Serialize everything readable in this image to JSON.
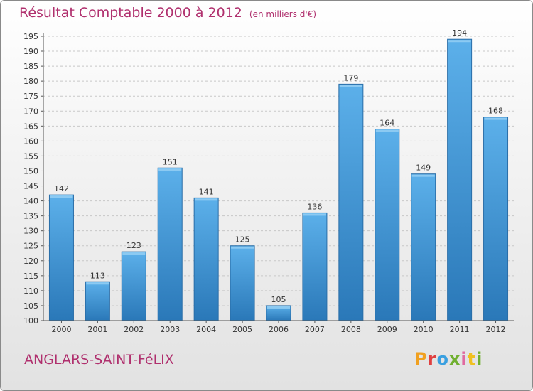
{
  "title": "Résultat Comptable 2000 à 2012",
  "subtitle": "(en milliers d'€)",
  "city": "ANGLARS-SAINT-FéLIX",
  "logo": {
    "p": "P",
    "r": "r",
    "o": "o",
    "x": "x",
    "i1": "i",
    "t": "t",
    "i2": "i"
  },
  "colors": {
    "title": "#b0306e",
    "bar_light": "#5aaee8",
    "bar_dark": "#2a78b8"
  },
  "chart_data": {
    "type": "bar",
    "title": "Résultat Comptable 2000 à 2012",
    "subtitle": "(en milliers d'€)",
    "categories": [
      "2000",
      "2001",
      "2002",
      "2003",
      "2004",
      "2005",
      "2006",
      "2007",
      "2008",
      "2009",
      "2010",
      "2011",
      "2012"
    ],
    "values": [
      142,
      113,
      123,
      151,
      141,
      125,
      105,
      136,
      179,
      164,
      149,
      194,
      168
    ],
    "xlabel": "",
    "ylabel": "",
    "ylim": [
      100,
      195
    ],
    "yticks": [
      100,
      105,
      110,
      115,
      120,
      125,
      130,
      135,
      140,
      145,
      150,
      155,
      160,
      165,
      170,
      175,
      180,
      185,
      190,
      195
    ],
    "grid": true
  }
}
